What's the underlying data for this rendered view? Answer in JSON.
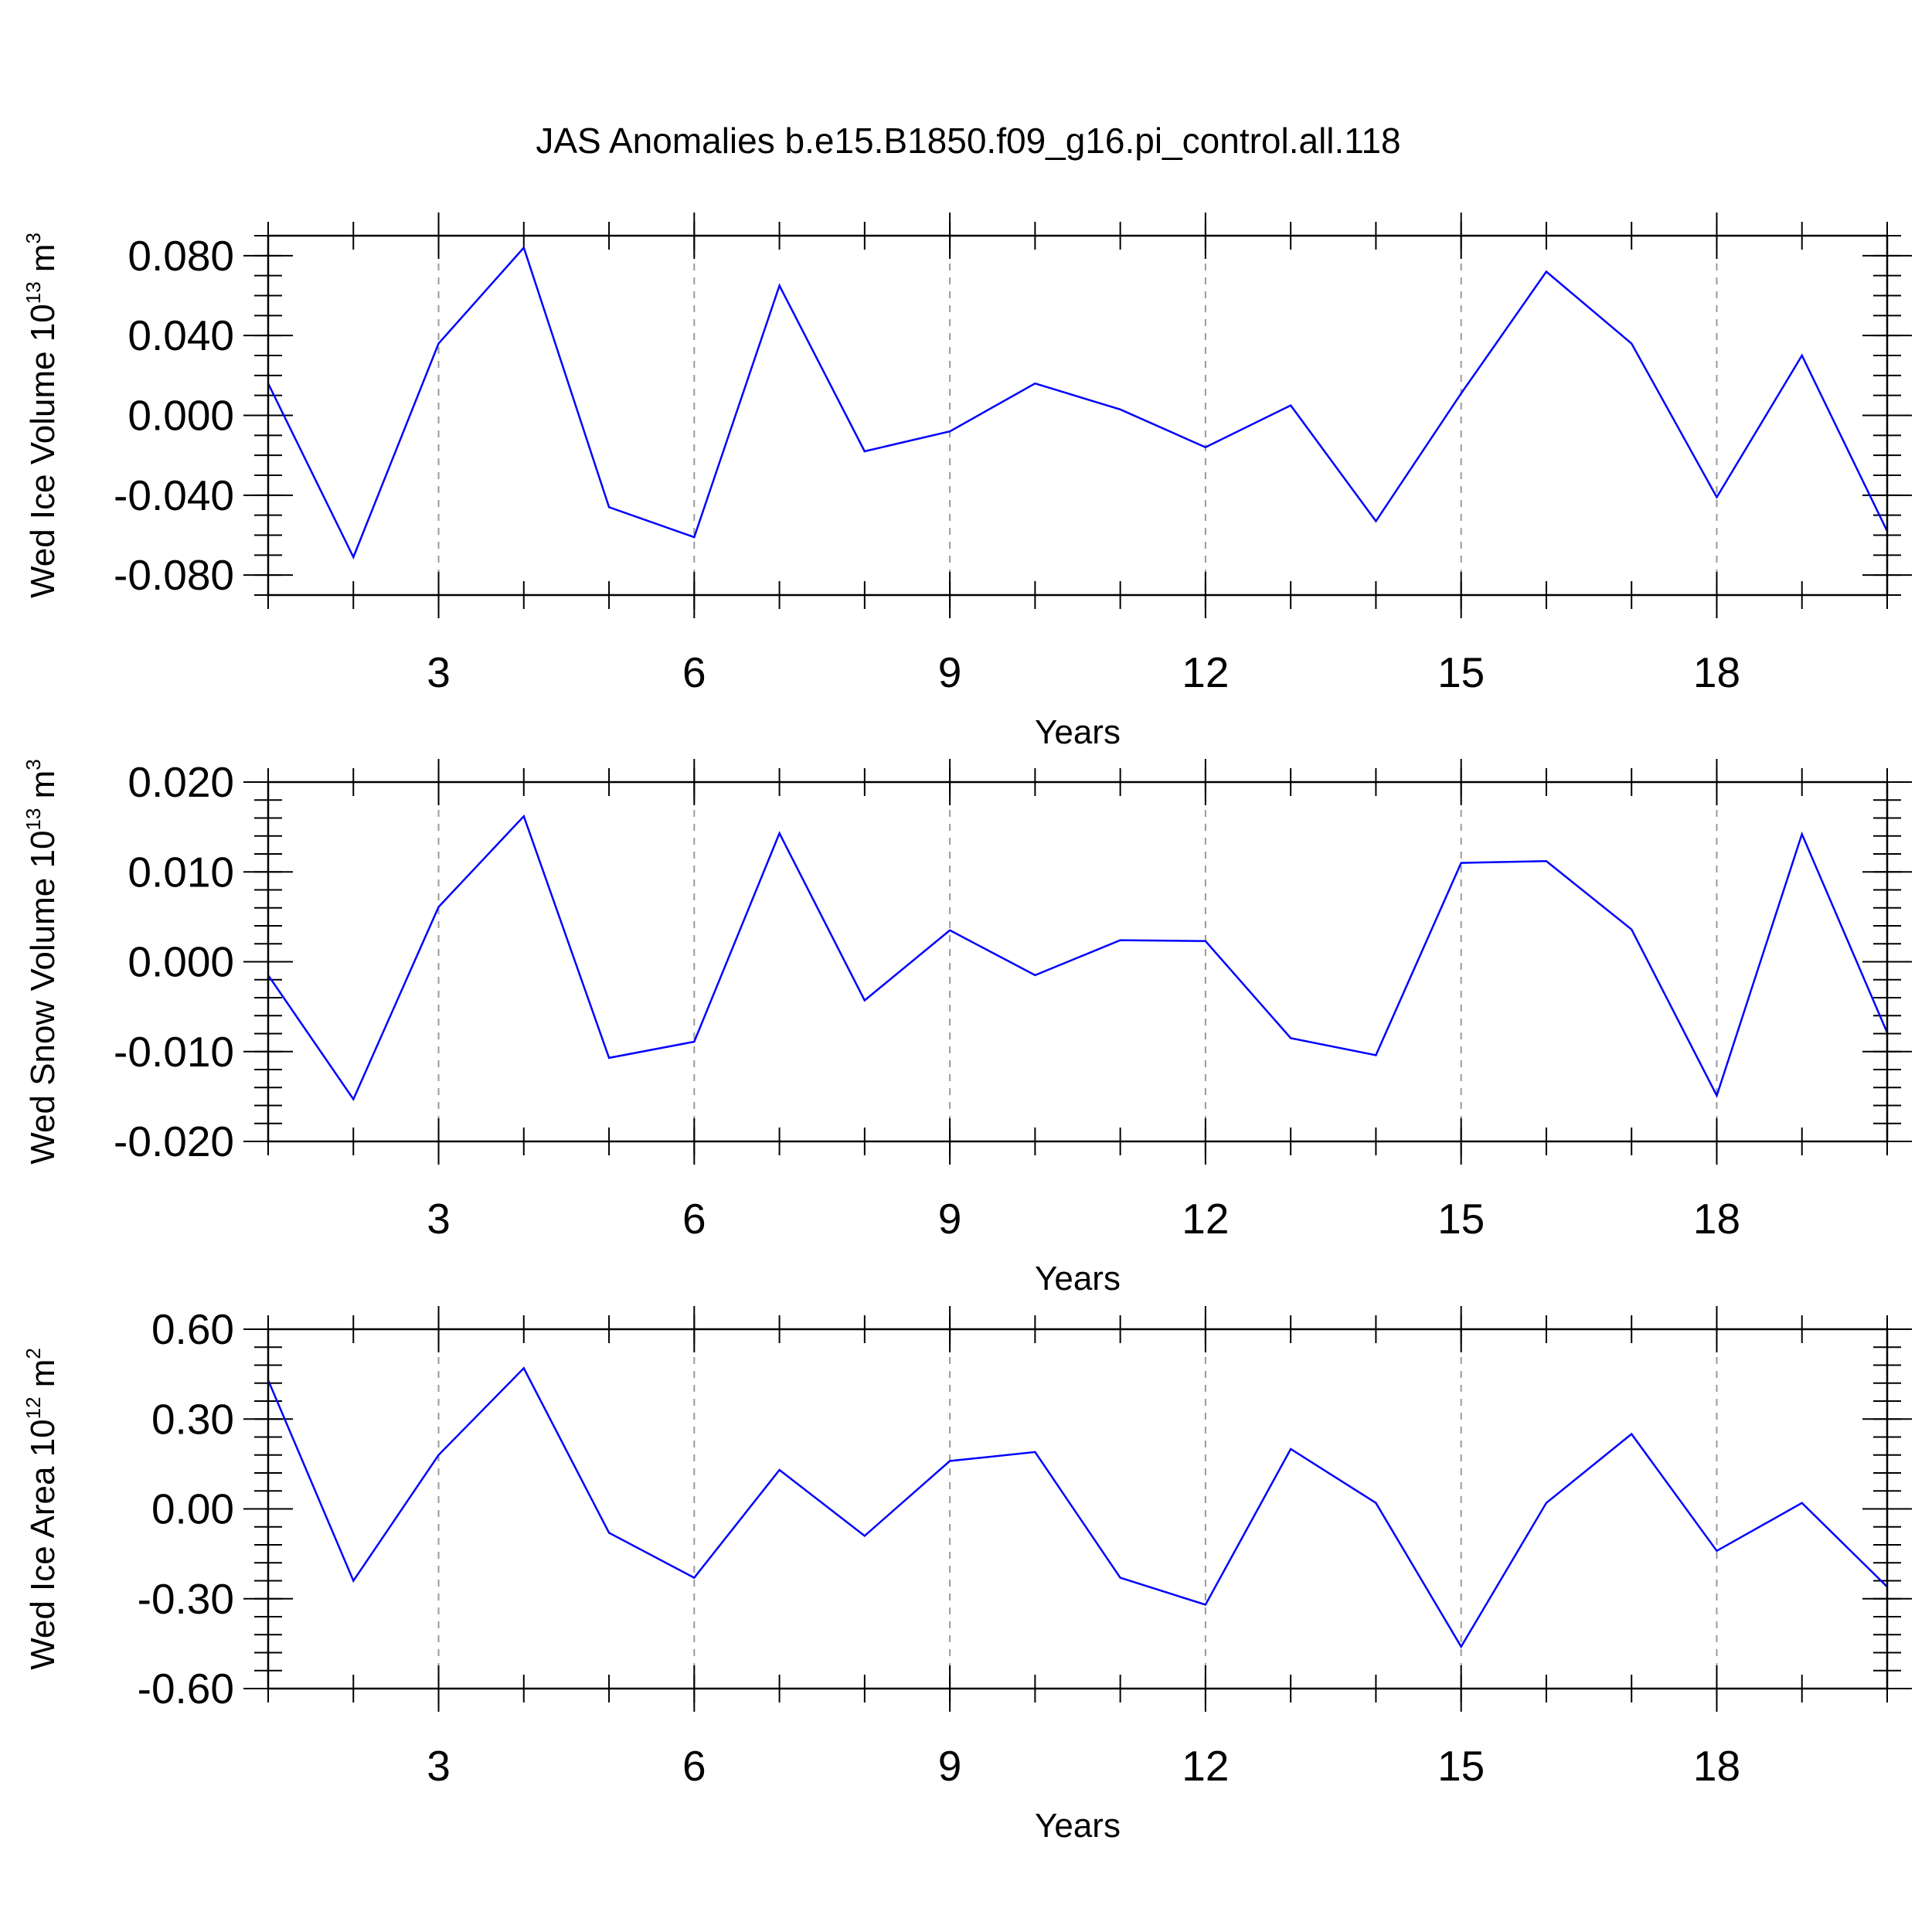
{
  "title": "JAS Anomalies b.e15.B1850.f09_g16.pi_control.all.118",
  "chart_data": [
    {
      "type": "line",
      "ylabel": {
        "text": "Wed Ice Volume 10",
        "sup": "13",
        "unit": " m",
        "unit_sup": "3"
      },
      "xlabel": "Years",
      "x": [
        1,
        2,
        3,
        4,
        5,
        6,
        7,
        8,
        9,
        10,
        11,
        12,
        13,
        14,
        15,
        16,
        17,
        18,
        19,
        20
      ],
      "values": [
        0.016,
        -0.071,
        0.036,
        0.084,
        -0.046,
        -0.061,
        0.065,
        -0.018,
        -0.008,
        0.016,
        0.003,
        -0.016,
        0.005,
        -0.053,
        0.011,
        0.072,
        0.036,
        -0.041,
        0.03,
        -0.058
      ],
      "ylim": [
        -0.09,
        0.09
      ],
      "yticks": [
        -0.08,
        -0.04,
        0.0,
        0.04,
        0.08
      ],
      "ytick_labels": [
        "-0.080",
        "-0.040",
        "0.000",
        "0.040",
        "0.080"
      ],
      "yminor_step": 0.01,
      "xlim": [
        1,
        20
      ],
      "xticks": [
        3,
        6,
        9,
        12,
        15,
        18
      ],
      "xtick_labels": [
        "3",
        "6",
        "9",
        "12",
        "15",
        "18"
      ],
      "grid": "vertical dashed",
      "color": "#0000ff"
    },
    {
      "type": "line",
      "ylabel": {
        "text": "Wed Snow Volume 10",
        "sup": "13",
        "unit": " m",
        "unit_sup": "3"
      },
      "xlabel": "Years",
      "x": [
        1,
        2,
        3,
        4,
        5,
        6,
        7,
        8,
        9,
        10,
        11,
        12,
        13,
        14,
        15,
        16,
        17,
        18,
        19,
        20
      ],
      "values": [
        -0.0015,
        -0.0153,
        0.0061,
        0.0162,
        -0.0107,
        -0.0089,
        0.0143,
        -0.0043,
        0.0035,
        -0.0015,
        0.0024,
        0.0023,
        -0.0085,
        -0.0104,
        0.011,
        0.0112,
        0.0036,
        -0.0149,
        0.0142,
        -0.0079
      ],
      "ylim": [
        -0.02,
        0.02
      ],
      "yticks": [
        -0.02,
        -0.01,
        0.0,
        0.01,
        0.02
      ],
      "ytick_labels": [
        "-0.020",
        "-0.010",
        "0.000",
        "0.010",
        "0.020"
      ],
      "yminor_step": 0.002,
      "xlim": [
        1,
        20
      ],
      "xticks": [
        3,
        6,
        9,
        12,
        15,
        18
      ],
      "xtick_labels": [
        "3",
        "6",
        "9",
        "12",
        "15",
        "18"
      ],
      "grid": "vertical dashed",
      "color": "#0000ff"
    },
    {
      "type": "line",
      "ylabel": {
        "text": "Wed Ice Area 10",
        "sup": "12",
        "unit": " m",
        "unit_sup": "2"
      },
      "xlabel": "Years",
      "x": [
        1,
        2,
        3,
        4,
        5,
        6,
        7,
        8,
        9,
        10,
        11,
        12,
        13,
        14,
        15,
        16,
        17,
        18,
        19,
        20
      ],
      "values": [
        0.43,
        -0.24,
        0.18,
        0.47,
        -0.08,
        -0.23,
        0.13,
        -0.09,
        0.16,
        0.19,
        -0.23,
        -0.32,
        0.2,
        0.02,
        -0.46,
        0.02,
        0.25,
        -0.14,
        0.02,
        -0.26
      ],
      "ylim": [
        -0.6,
        0.6
      ],
      "yticks": [
        -0.6,
        -0.3,
        0.0,
        0.3,
        0.6
      ],
      "ytick_labels": [
        "-0.60",
        "-0.30",
        "0.00",
        "0.30",
        "0.60"
      ],
      "yminor_step": 0.06,
      "xlim": [
        1,
        20
      ],
      "xticks": [
        3,
        6,
        9,
        12,
        15,
        18
      ],
      "xtick_labels": [
        "3",
        "6",
        "9",
        "12",
        "15",
        "18"
      ],
      "grid": "vertical dashed",
      "color": "#0000ff"
    }
  ]
}
